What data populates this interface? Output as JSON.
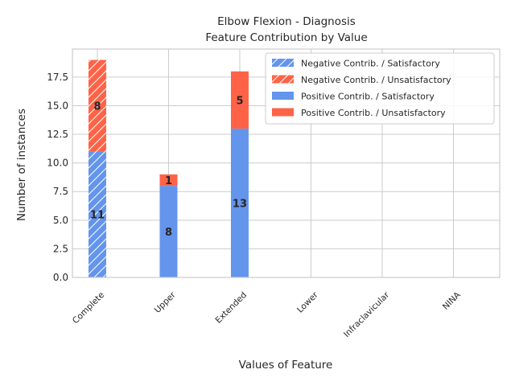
{
  "chart_data": {
    "type": "bar",
    "stacked": true,
    "title": "Elbow Flexion - Diagnosis",
    "subtitle": "Feature Contribution by Value",
    "xlabel": "Values of Feature",
    "ylabel": "Number of instances",
    "categories": [
      "Complete",
      "Upper",
      "Extended",
      "Lower",
      "Infraclavicular",
      "NINA"
    ],
    "ylim": [
      0,
      19.95
    ],
    "yticks": [
      "0.0",
      "2.5",
      "5.0",
      "7.5",
      "10.0",
      "12.5",
      "15.0",
      "17.5"
    ],
    "grid": true,
    "legend_position": "top-right",
    "series": [
      {
        "name": "Negative Contrib. / Satisfactory",
        "color": "#6495ed",
        "hatch": true,
        "values": [
          11,
          0,
          0,
          0,
          0,
          0
        ]
      },
      {
        "name": "Negative Contrib. / Unsatisfactory",
        "color": "#ff6347",
        "hatch": true,
        "values": [
          8,
          0,
          0,
          0,
          0,
          0
        ]
      },
      {
        "name": "Positive Contrib. / Satisfactory",
        "color": "#6495ed",
        "hatch": false,
        "values": [
          0,
          8,
          13,
          0,
          0,
          0
        ]
      },
      {
        "name": "Positive Contrib. / Unsatisfactory",
        "color": "#ff6347",
        "hatch": false,
        "values": [
          0,
          1,
          5,
          0,
          0,
          0
        ]
      }
    ]
  }
}
